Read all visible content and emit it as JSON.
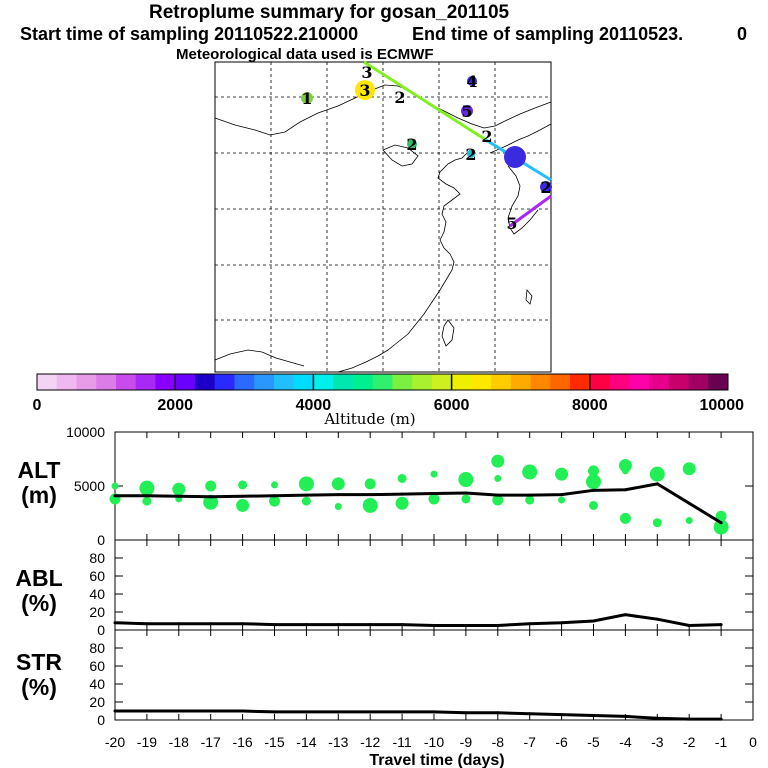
{
  "title": "Retroplume summary for gosan_201105",
  "start_label": "Start time of sampling 20110522.210000",
  "end_label": "End time of sampling 20110523.",
  "end_suffix": "0",
  "met_label": "Meteorological data used is ECMWF",
  "colorbar": {
    "label": "Altitude  (m)",
    "ticks": [
      "0",
      "2000",
      "4000",
      "6000",
      "8000",
      "10000"
    ],
    "colors": [
      "#f4d4f4",
      "#f0b8f0",
      "#e89ce8",
      "#dc7ce8",
      "#c84cec",
      "#a828f4",
      "#8a00ff",
      "#6a00ff",
      "#1c00c8",
      "#2a2aff",
      "#2a6aff",
      "#2a96ff",
      "#20c0ff",
      "#00dcff",
      "#00f0ea",
      "#00e8b0",
      "#00f090",
      "#30f070",
      "#7af040",
      "#a8f030",
      "#cef020",
      "#eef000",
      "#ffe800",
      "#ffcc00",
      "#ffaa00",
      "#ff8800",
      "#ff6600",
      "#ff2a00",
      "#ff0044",
      "#ff0080",
      "#ff00aa",
      "#e8008c",
      "#c8006c",
      "#a00064",
      "#6a0050"
    ]
  },
  "map": {
    "trajectory_labels": [
      "1",
      "2",
      "2",
      "2",
      "3",
      "3",
      "4",
      "5",
      "5",
      "2",
      "2"
    ]
  },
  "chart_data": [
    {
      "type": "line",
      "name": "ALT",
      "ylabel": "ALT\n(m)",
      "ylabel_lines": [
        "ALT",
        "(m)"
      ],
      "ylim": [
        0,
        10000
      ],
      "yticks": [
        "10000",
        "5000",
        "0"
      ],
      "x": [
        -20,
        -19,
        -18,
        -17,
        -16,
        -15,
        -14,
        -13,
        -12,
        -11,
        -10,
        -9,
        -8,
        -7,
        -6,
        -5,
        -4,
        -3,
        -1
      ],
      "line": [
        4100,
        4100,
        4050,
        4000,
        4050,
        4100,
        4150,
        4200,
        4200,
        4250,
        4300,
        4350,
        4150,
        4150,
        4200,
        4600,
        4650,
        5200,
        1600
      ],
      "cluster_points": [
        {
          "x": -20,
          "y": 5000
        },
        {
          "x": -20,
          "y": 3800
        },
        {
          "x": -19,
          "y": 4800
        },
        {
          "x": -19,
          "y": 3600
        },
        {
          "x": -18,
          "y": 4700
        },
        {
          "x": -18,
          "y": 3800
        },
        {
          "x": -17,
          "y": 5000
        },
        {
          "x": -17,
          "y": 3500
        },
        {
          "x": -16,
          "y": 5100
        },
        {
          "x": -16,
          "y": 3200
        },
        {
          "x": -15,
          "y": 5100
        },
        {
          "x": -15,
          "y": 3600
        },
        {
          "x": -14,
          "y": 5200
        },
        {
          "x": -14,
          "y": 3600
        },
        {
          "x": -13,
          "y": 5200
        },
        {
          "x": -13,
          "y": 3100
        },
        {
          "x": -12,
          "y": 5200
        },
        {
          "x": -12,
          "y": 3200
        },
        {
          "x": -11,
          "y": 5700
        },
        {
          "x": -11,
          "y": 3400
        },
        {
          "x": -10,
          "y": 6100
        },
        {
          "x": -10,
          "y": 3800
        },
        {
          "x": -9,
          "y": 5600
        },
        {
          "x": -9,
          "y": 3800
        },
        {
          "x": -8,
          "y": 7300
        },
        {
          "x": -8,
          "y": 5700
        },
        {
          "x": -8,
          "y": 3700
        },
        {
          "x": -7,
          "y": 6300
        },
        {
          "x": -7,
          "y": 3700
        },
        {
          "x": -6,
          "y": 6100
        },
        {
          "x": -6,
          "y": 3700
        },
        {
          "x": -5,
          "y": 6400
        },
        {
          "x": -5,
          "y": 5400
        },
        {
          "x": -5,
          "y": 3200
        },
        {
          "x": -4,
          "y": 6900
        },
        {
          "x": -4,
          "y": 6400
        },
        {
          "x": -4,
          "y": 2000
        },
        {
          "x": -3,
          "y": 6100
        },
        {
          "x": -3,
          "y": 1600
        },
        {
          "x": -2,
          "y": 6600
        },
        {
          "x": -2,
          "y": 1800
        },
        {
          "x": -1,
          "y": 2200
        },
        {
          "x": -1,
          "y": 1200
        }
      ]
    },
    {
      "type": "line",
      "name": "ABL",
      "ylabel": "ABL\n(%)",
      "ylabel_lines": [
        "ABL",
        "(%)"
      ],
      "ylim": [
        0,
        100
      ],
      "yticks": [
        "80",
        "60",
        "40",
        "20",
        "0"
      ],
      "x": [
        -20,
        -19,
        -18,
        -17,
        -16,
        -15,
        -14,
        -13,
        -12,
        -11,
        -10,
        -9,
        -8,
        -7,
        -6,
        -5,
        -4,
        -3,
        -2,
        -1
      ],
      "values": [
        8,
        7,
        7,
        7,
        7,
        6,
        6,
        6,
        6,
        6,
        5,
        5,
        5,
        7,
        8,
        10,
        17,
        12,
        5,
        6
      ]
    },
    {
      "type": "line",
      "name": "STR",
      "ylabel": "STR\n(%)",
      "ylabel_lines": [
        "STR",
        "(%)"
      ],
      "ylim": [
        0,
        100
      ],
      "yticks": [
        "80",
        "60",
        "40",
        "20",
        "0"
      ],
      "x": [
        -20,
        -19,
        -18,
        -17,
        -16,
        -15,
        -14,
        -13,
        -12,
        -11,
        -10,
        -9,
        -8,
        -7,
        -6,
        -5,
        -4,
        -3,
        -2,
        -1
      ],
      "values": [
        10,
        10,
        10,
        10,
        10,
        9,
        9,
        9,
        9,
        9,
        9,
        8,
        8,
        7,
        6,
        5,
        4,
        2,
        1,
        1
      ],
      "xlabel": "Travel time (days)",
      "xticks": [
        "-20",
        "-19",
        "-18",
        "-17",
        "-16",
        "-15",
        "-14",
        "-13",
        "-12",
        "-11",
        "-10",
        "-9",
        "-8",
        "-7",
        "-6",
        "-5",
        "-4",
        "-3",
        "-2",
        "-1",
        "0"
      ]
    }
  ]
}
